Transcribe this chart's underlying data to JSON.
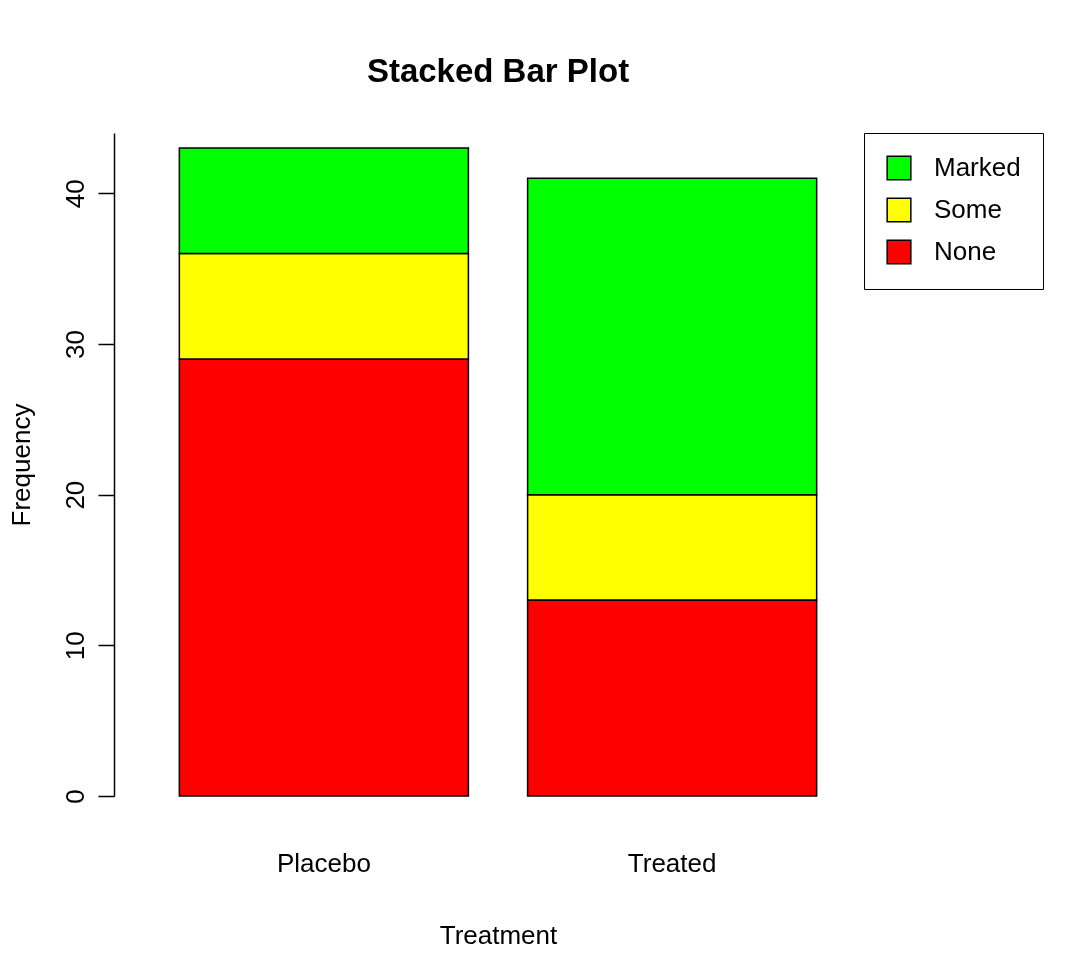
{
  "chart_data": {
    "type": "bar",
    "title": "Stacked Bar Plot",
    "xlabel": "Treatment",
    "ylabel": "Frequency",
    "categories": [
      "Placebo",
      "Treated"
    ],
    "series": [
      {
        "name": "None",
        "color": "#ff0000",
        "values": [
          29,
          13
        ]
      },
      {
        "name": "Some",
        "color": "#ffff00",
        "values": [
          7,
          7
        ]
      },
      {
        "name": "Marked",
        "color": "#00ff00",
        "values": [
          7,
          21
        ]
      }
    ],
    "stacked": true,
    "ylim": [
      0,
      44
    ],
    "yticks": [
      0,
      10,
      20,
      30,
      40
    ],
    "grid": false,
    "legend": "top right"
  }
}
